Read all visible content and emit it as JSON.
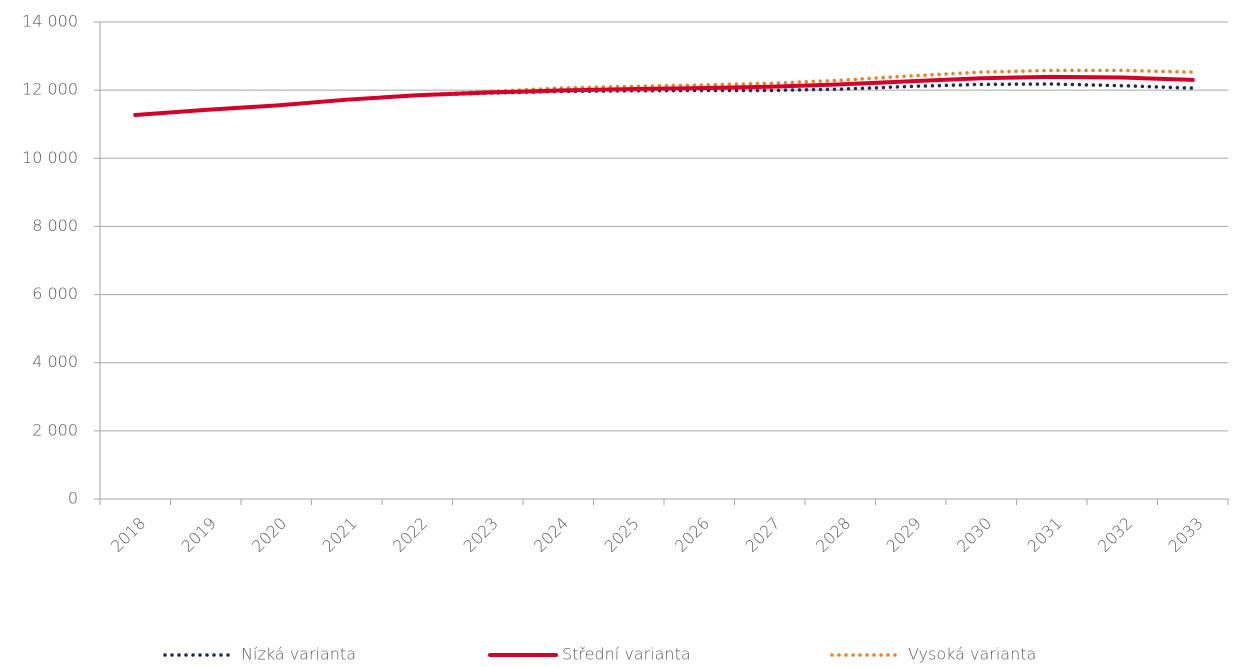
{
  "chart_data": {
    "type": "line",
    "categories": [
      "2018",
      "2019",
      "2020",
      "2021",
      "2022",
      "2023",
      "2024",
      "2025",
      "2026",
      "2027",
      "2028",
      "2029",
      "2030",
      "2031",
      "2032",
      "2033"
    ],
    "series": [
      {
        "name": "Nízká varianta",
        "color": "#1f2a5a",
        "dash": "dotted",
        "values": [
          11270,
          11420,
          11550,
          11720,
          11850,
          11910,
          11960,
          11980,
          11990,
          11990,
          12030,
          12110,
          12170,
          12180,
          12130,
          12060
        ]
      },
      {
        "name": "Střední varianta",
        "color": "#d5002a",
        "dash": "solid",
        "values": [
          11270,
          11420,
          11550,
          11720,
          11850,
          11930,
          11990,
          12030,
          12060,
          12100,
          12170,
          12260,
          12350,
          12390,
          12370,
          12300
        ]
      },
      {
        "name": "Vysoká varianta",
        "color": "#f07f24",
        "dash": "dotted",
        "values": [
          11270,
          11420,
          11550,
          11720,
          11860,
          11960,
          12060,
          12110,
          12150,
          12200,
          12290,
          12420,
          12530,
          12580,
          12580,
          12530
        ]
      }
    ],
    "ylim": [
      0,
      14000
    ],
    "yticks": [
      0,
      {
        "value": 2000,
        "label": "2 000"
      },
      {
        "value": 4000,
        "label": "4 000"
      },
      {
        "value": 6000,
        "label": "6 000"
      },
      {
        "value": 8000,
        "label": "8 000"
      },
      {
        "value": 10000,
        "label": "10 000"
      },
      {
        "value": 12000,
        "label": "12 000"
      },
      {
        "value": 14000,
        "label": "14 000"
      }
    ],
    "grid": true,
    "legend": "bottom"
  }
}
